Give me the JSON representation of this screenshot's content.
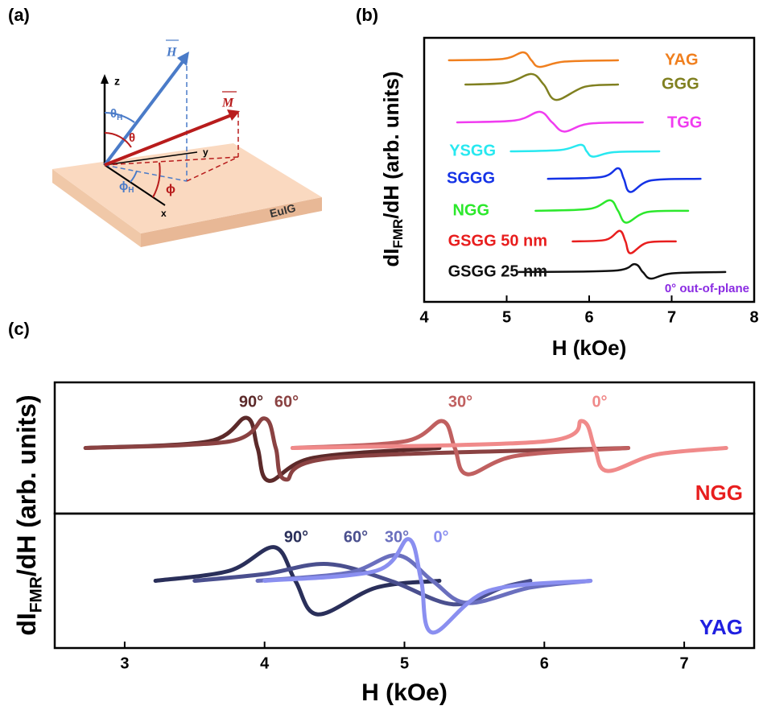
{
  "panel_a": {
    "label": "(a)",
    "axis_z": "z",
    "axis_y": "y",
    "axis_x": "x",
    "vector_h": "H",
    "vector_m": "M",
    "theta_h": "θ",
    "theta_h_sub": "H",
    "theta": "θ",
    "phi_h": "ϕ",
    "phi_h_sub": "H",
    "phi": "ϕ",
    "film": "EuIG"
  },
  "chart_data": [
    {
      "type": "line",
      "panel_label": "(b)",
      "ylabel_parts": [
        "dI",
        "FMR",
        "/dH (arb. units)"
      ],
      "xlabel": "H (kOe)",
      "annotation": "0° out-of-plane",
      "xlim": [
        4,
        8
      ],
      "xticks": [
        4,
        5,
        6,
        7,
        8
      ],
      "ylim": [
        0,
        10
      ],
      "series": [
        {
          "name": "YAG",
          "color": "#f07f1e",
          "x": [
            4.3,
            4.95,
            5.2,
            5.3,
            5.4,
            5.7,
            6.35
          ],
          "values": [
            9.15,
            9.2,
            9.45,
            9.15,
            8.9,
            9.1,
            9.15
          ]
        },
        {
          "name": "GGG",
          "color": "#808020",
          "x": [
            4.5,
            5.0,
            5.3,
            5.45,
            5.6,
            5.95,
            6.35
          ],
          "values": [
            8.23,
            8.3,
            8.63,
            8.23,
            7.65,
            8.15,
            8.23
          ]
        },
        {
          "name": "TGG",
          "color": "#f03cf0",
          "x": [
            4.4,
            5.1,
            5.4,
            5.55,
            5.7,
            6.0,
            6.65
          ],
          "values": [
            6.8,
            6.87,
            7.2,
            6.8,
            6.45,
            6.75,
            6.8
          ]
        },
        {
          "name": "YSGG",
          "color": "#28e8f0",
          "x": [
            5.05,
            5.65,
            5.9,
            5.97,
            6.05,
            6.3,
            6.85
          ],
          "values": [
            5.7,
            5.75,
            5.95,
            5.7,
            5.5,
            5.67,
            5.7
          ]
        },
        {
          "name": "SGGG",
          "color": "#1432e6",
          "x": [
            5.5,
            6.15,
            6.35,
            6.42,
            6.5,
            6.75,
            7.35
          ],
          "values": [
            4.66,
            4.73,
            5.06,
            4.66,
            4.16,
            4.6,
            4.66
          ]
        },
        {
          "name": "NGG",
          "color": "#2ce82c",
          "x": [
            5.35,
            6.0,
            6.25,
            6.35,
            6.45,
            6.7,
            7.2
          ],
          "values": [
            3.45,
            3.52,
            3.85,
            3.45,
            3.0,
            3.4,
            3.45
          ]
        },
        {
          "name": "GSGG 50 nm",
          "color": "#e81e1e",
          "x": [
            5.8,
            6.2,
            6.37,
            6.44,
            6.5,
            6.7,
            7.05
          ],
          "values": [
            2.29,
            2.35,
            2.69,
            2.29,
            1.84,
            2.24,
            2.29
          ]
        },
        {
          "name": "GSGG 25 nm",
          "color": "#111111",
          "x": [
            5.15,
            6.3,
            6.55,
            6.65,
            6.75,
            7.0,
            7.65
          ],
          "values": [
            1.13,
            1.18,
            1.43,
            1.13,
            0.88,
            1.08,
            1.13
          ]
        }
      ]
    },
    {
      "type": "line",
      "panel_label": "(c)",
      "ylabel_parts": [
        "dI",
        "FMR",
        "/dH (arb. units)"
      ],
      "label": "NGG",
      "label_color": "#e81e1e",
      "xlim": [
        2.5,
        7.5
      ],
      "ylim": [
        -1,
        1
      ],
      "series": [
        {
          "name": "90°",
          "color": "#5c2a2a",
          "x": [
            2.72,
            3.6,
            3.87,
            3.95,
            4.03,
            4.35,
            5.25
          ],
          "values": [
            0,
            0.1,
            0.46,
            0,
            -0.5,
            -0.15,
            0
          ]
        },
        {
          "name": "60°",
          "color": "#8a4242",
          "x": [
            2.72,
            3.75,
            4.0,
            4.08,
            4.15,
            4.5,
            6.6
          ],
          "values": [
            0,
            0.1,
            0.45,
            0,
            -0.48,
            -0.15,
            0
          ]
        },
        {
          "name": "30°",
          "color": "#c06060",
          "x": [
            4.2,
            5.0,
            5.27,
            5.36,
            5.45,
            5.8,
            6.6
          ],
          "values": [
            0,
            0.1,
            0.41,
            0,
            -0.4,
            -0.12,
            0
          ]
        },
        {
          "name": "0°",
          "color": "#f08a8a",
          "x": [
            4.2,
            6.0,
            6.27,
            6.36,
            6.45,
            6.8,
            7.3
          ],
          "values": [
            0,
            0.1,
            0.41,
            0,
            -0.35,
            -0.1,
            0
          ]
        }
      ]
    },
    {
      "type": "line",
      "label": "YAG",
      "label_color": "#2020e0",
      "xlabel": "H (kOe)",
      "xlim": [
        2.5,
        7.5
      ],
      "xticks": [
        3,
        4,
        5,
        6,
        7
      ],
      "ylim": [
        -1,
        1
      ],
      "series": [
        {
          "name": "90°",
          "color": "#2a2f5a",
          "x": [
            3.22,
            3.75,
            4.07,
            4.22,
            4.38,
            4.8,
            5.25
          ],
          "values": [
            0,
            0.15,
            0.5,
            0,
            -0.5,
            -0.1,
            0
          ]
        },
        {
          "name": "60°",
          "color": "#4a4f8e",
          "x": [
            3.5,
            4.0,
            4.45,
            4.9,
            5.35,
            5.7,
            5.9
          ],
          "values": [
            0,
            0.1,
            0.25,
            0,
            -0.35,
            -0.1,
            0
          ]
        },
        {
          "name": "30°",
          "color": "#6a6fbe",
          "x": [
            3.95,
            4.6,
            4.95,
            5.2,
            5.45,
            5.9,
            6.33
          ],
          "values": [
            0,
            0.12,
            0.38,
            0,
            -0.33,
            -0.1,
            0
          ]
        },
        {
          "name": "0°",
          "color": "#8a8ff0",
          "x": [
            4.0,
            4.8,
            5.03,
            5.12,
            5.2,
            5.6,
            6.33
          ],
          "values": [
            0,
            0.15,
            0.62,
            0,
            -0.77,
            -0.15,
            0
          ]
        }
      ]
    }
  ]
}
